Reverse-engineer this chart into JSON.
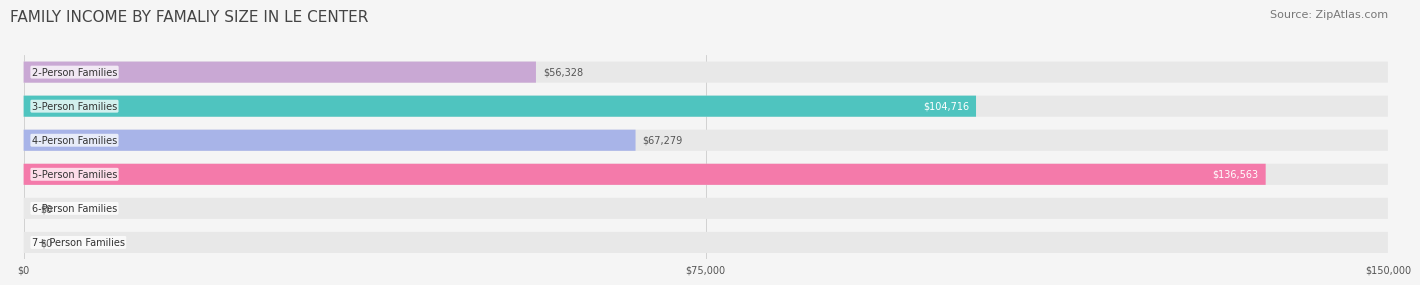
{
  "title": "FAMILY INCOME BY FAMALIY SIZE IN LE CENTER",
  "source": "Source: ZipAtlas.com",
  "categories": [
    "2-Person Families",
    "3-Person Families",
    "4-Person Families",
    "5-Person Families",
    "6-Person Families",
    "7+ Person Families"
  ],
  "values": [
    56328,
    104716,
    67279,
    136563,
    0,
    0
  ],
  "bar_colors": [
    "#c9a8d4",
    "#4fc4bf",
    "#a8b4e8",
    "#f47aaa",
    "#f7c99a",
    "#f5a89a"
  ],
  "label_colors": [
    "#555555",
    "#ffffff",
    "#555555",
    "#ffffff",
    "#555555",
    "#555555"
  ],
  "x_max": 150000,
  "x_ticks": [
    0,
    75000,
    150000
  ],
  "x_tick_labels": [
    "$0",
    "$75,000",
    "$150,000"
  ],
  "bg_color": "#f5f5f5",
  "bar_bg_color": "#e8e8e8",
  "title_fontsize": 11,
  "source_fontsize": 8,
  "label_fontsize": 7,
  "value_fontsize": 7
}
